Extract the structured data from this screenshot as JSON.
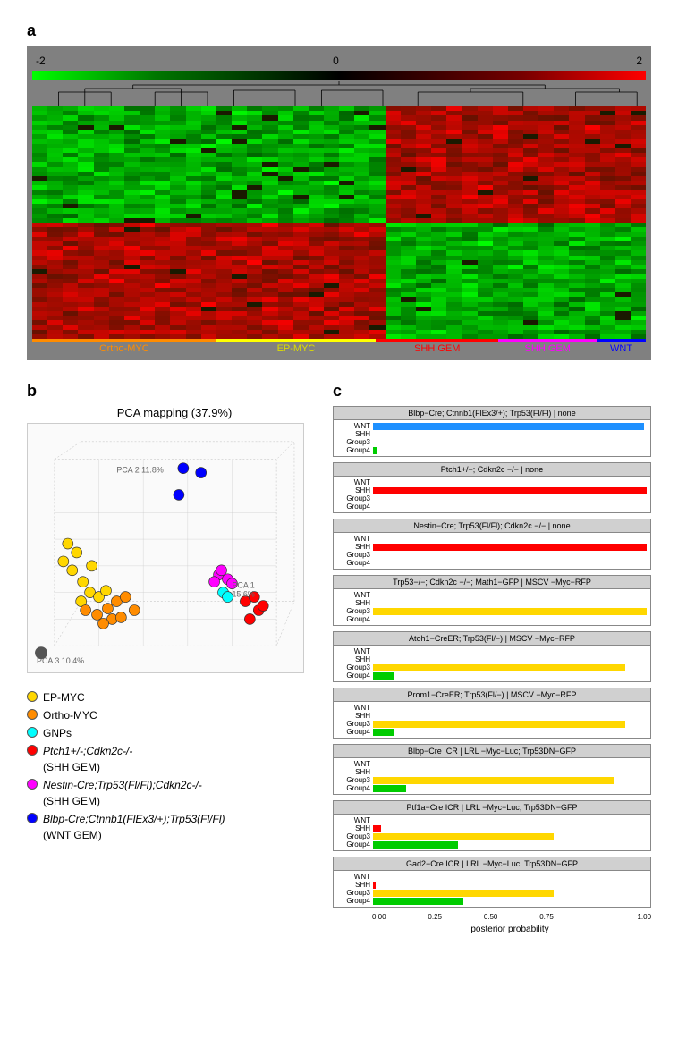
{
  "panel_a": {
    "label": "a",
    "scale": {
      "min": -2.0,
      "mid": 0.0,
      "max": 2.0
    },
    "colors": {
      "scale_low": "#00ff00",
      "scale_mid": "#000000",
      "scale_high": "#ff0000",
      "bg": "#808080"
    },
    "heatmap": {
      "type": "heatmap",
      "n_cols": 40,
      "n_rows": 50,
      "col_groups": [
        {
          "name": "Ortho-MYC",
          "color": "#ff8c00",
          "text_color": "#ff8c00",
          "width": 0.3
        },
        {
          "name": "EP-MYC",
          "color": "#ffff00",
          "text_color": "#dddd00",
          "width": 0.26
        },
        {
          "name": "SHH GEM",
          "color": "#ff0000",
          "text_color": "#ff0000",
          "width": 0.2
        },
        {
          "name": "SHH GEM",
          "color": "#ff00ff",
          "text_color": "#ff00ff",
          "width": 0.16
        },
        {
          "name": "WNT",
          "color": "#0000ff",
          "text_color": "#0000ff",
          "width": 0.08
        }
      ]
    }
  },
  "panel_b": {
    "label": "b",
    "title": "PCA mapping (37.9%)",
    "type": "scatter",
    "axes": {
      "pca1": {
        "label": "PCA 1",
        "var": "15.6%"
      },
      "pca2": {
        "label": "PCA 2",
        "var": "11.8%"
      },
      "pca3": {
        "label": "PCA 3",
        "var": "10.4%"
      }
    },
    "points": [
      {
        "x": 50,
        "y": 165,
        "color": "#ffd700",
        "r": 6
      },
      {
        "x": 62,
        "y": 178,
        "color": "#ffd700",
        "r": 6
      },
      {
        "x": 45,
        "y": 135,
        "color": "#ffd700",
        "r": 6
      },
      {
        "x": 70,
        "y": 190,
        "color": "#ffd700",
        "r": 6
      },
      {
        "x": 80,
        "y": 195,
        "color": "#ffd700",
        "r": 6
      },
      {
        "x": 55,
        "y": 145,
        "color": "#ffd700",
        "r": 6
      },
      {
        "x": 40,
        "y": 155,
        "color": "#ffd700",
        "r": 6
      },
      {
        "x": 88,
        "y": 188,
        "color": "#ffd700",
        "r": 6
      },
      {
        "x": 72,
        "y": 160,
        "color": "#ffd700",
        "r": 6
      },
      {
        "x": 60,
        "y": 200,
        "color": "#ffd700",
        "r": 6
      },
      {
        "x": 65,
        "y": 210,
        "color": "#ff8c00",
        "r": 6
      },
      {
        "x": 78,
        "y": 215,
        "color": "#ff8c00",
        "r": 6
      },
      {
        "x": 90,
        "y": 208,
        "color": "#ff8c00",
        "r": 6
      },
      {
        "x": 100,
        "y": 200,
        "color": "#ff8c00",
        "r": 6
      },
      {
        "x": 110,
        "y": 195,
        "color": "#ff8c00",
        "r": 6
      },
      {
        "x": 95,
        "y": 220,
        "color": "#ff8c00",
        "r": 6
      },
      {
        "x": 85,
        "y": 225,
        "color": "#ff8c00",
        "r": 6
      },
      {
        "x": 105,
        "y": 218,
        "color": "#ff8c00",
        "r": 6
      },
      {
        "x": 120,
        "y": 210,
        "color": "#ff8c00",
        "r": 6
      },
      {
        "x": 220,
        "y": 190,
        "color": "#00ffff",
        "r": 6
      },
      {
        "x": 225,
        "y": 195,
        "color": "#00ffff",
        "r": 6
      },
      {
        "x": 245,
        "y": 200,
        "color": "#ff0000",
        "r": 6
      },
      {
        "x": 255,
        "y": 195,
        "color": "#ff0000",
        "r": 6
      },
      {
        "x": 260,
        "y": 210,
        "color": "#ff0000",
        "r": 6
      },
      {
        "x": 250,
        "y": 220,
        "color": "#ff0000",
        "r": 6
      },
      {
        "x": 265,
        "y": 205,
        "color": "#ff0000",
        "r": 6
      },
      {
        "x": 215,
        "y": 170,
        "color": "#ff00ff",
        "r": 6
      },
      {
        "x": 225,
        "y": 175,
        "color": "#ff00ff",
        "r": 6
      },
      {
        "x": 218,
        "y": 165,
        "color": "#ff00ff",
        "r": 6
      },
      {
        "x": 230,
        "y": 180,
        "color": "#ff00ff",
        "r": 6
      },
      {
        "x": 210,
        "y": 178,
        "color": "#ff00ff",
        "r": 6
      },
      {
        "x": 175,
        "y": 50,
        "color": "#0000ff",
        "r": 6
      },
      {
        "x": 195,
        "y": 55,
        "color": "#0000ff",
        "r": 6
      },
      {
        "x": 170,
        "y": 80,
        "color": "#0000ff",
        "r": 6
      }
    ],
    "legend": [
      {
        "color": "#ffd700",
        "text": "EP-MYC",
        "italic": false
      },
      {
        "color": "#ff8c00",
        "text": "Ortho-MYC",
        "italic": false
      },
      {
        "color": "#00ffff",
        "text": "GNPs",
        "italic": false
      },
      {
        "color": "#ff0000",
        "text": "Ptch1+/-;Cdkn2c-/-",
        "sub": "(SHH GEM)",
        "italic": true
      },
      {
        "color": "#ff00ff",
        "text": "Nestin-Cre;Trp53(Fl/Fl);Cdkn2c-/-",
        "sub": "(SHH GEM)",
        "italic": true
      },
      {
        "color": "#0000ff",
        "text": "Blbp-Cre;Ctnnb1(FlEx3/+);Trp53(Fl/Fl)",
        "sub": "(WNT GEM)",
        "italic": true
      }
    ]
  },
  "panel_c": {
    "label": "c",
    "type": "bar",
    "xlabel": "posterior probability",
    "xticks": [
      "0.00",
      "0.25",
      "0.50",
      "0.75",
      "1.00"
    ],
    "row_labels": [
      "WNT",
      "SHH",
      "Group3",
      "Group4"
    ],
    "colors": {
      "WNT": "#1e90ff",
      "SHH": "#ff0000",
      "Group3": "#ffd700",
      "Group4": "#00cc00"
    },
    "charts": [
      {
        "title": "Blbp−Cre; Ctnnb1(FlEx3/+);   Trp53(Fl/Fl) | none",
        "bars": {
          "WNT": 0.99,
          "SHH": 0.0,
          "Group3": 0.0,
          "Group4": 0.015
        }
      },
      {
        "title": "Ptch1+/−; Cdkn2c −/− | none",
        "bars": {
          "WNT": 0.0,
          "SHH": 1.0,
          "Group3": 0.0,
          "Group4": 0.0
        }
      },
      {
        "title": "Nestin−Cre;  Trp53(Fl/Fl); Cdkn2c  −/− | none",
        "bars": {
          "WNT": 0.0,
          "SHH": 1.0,
          "Group3": 0.0,
          "Group4": 0.0
        }
      },
      {
        "title": "Trp53−/−; Cdkn2c −/−; Math1−GFP | MSCV   −Myc−RFP",
        "bars": {
          "WNT": 0.0,
          "SHH": 0.0,
          "Group3": 1.0,
          "Group4": 0.0
        }
      },
      {
        "title": "Atoh1−CreER;   Trp53(Fl/−) | MSCV  −Myc−RFP",
        "bars": {
          "WNT": 0.0,
          "SHH": 0.0,
          "Group3": 0.92,
          "Group4": 0.08
        }
      },
      {
        "title": "Prom1−CreER;   Trp53(Fl/−) | MSCV  −Myc−RFP",
        "bars": {
          "WNT": 0.0,
          "SHH": 0.0,
          "Group3": 0.92,
          "Group4": 0.08
        }
      },
      {
        "title": "Blbp−Cre ICR | LRL   −Myc−Luc;  Trp53DN−GFP",
        "bars": {
          "WNT": 0.0,
          "SHH": 0.0,
          "Group3": 0.88,
          "Group4": 0.12
        }
      },
      {
        "title": "Ptf1a−Cre ICR | LRL   −Myc−Luc;  Trp53DN−GFP",
        "bars": {
          "WNT": 0.0,
          "SHH": 0.03,
          "Group3": 0.66,
          "Group4": 0.31
        }
      },
      {
        "title": "Gad2−Cre ICR | LRL   −Myc−Luc;  Trp53DN−GFP",
        "bars": {
          "WNT": 0.0,
          "SHH": 0.01,
          "Group3": 0.66,
          "Group4": 0.33
        }
      }
    ]
  }
}
